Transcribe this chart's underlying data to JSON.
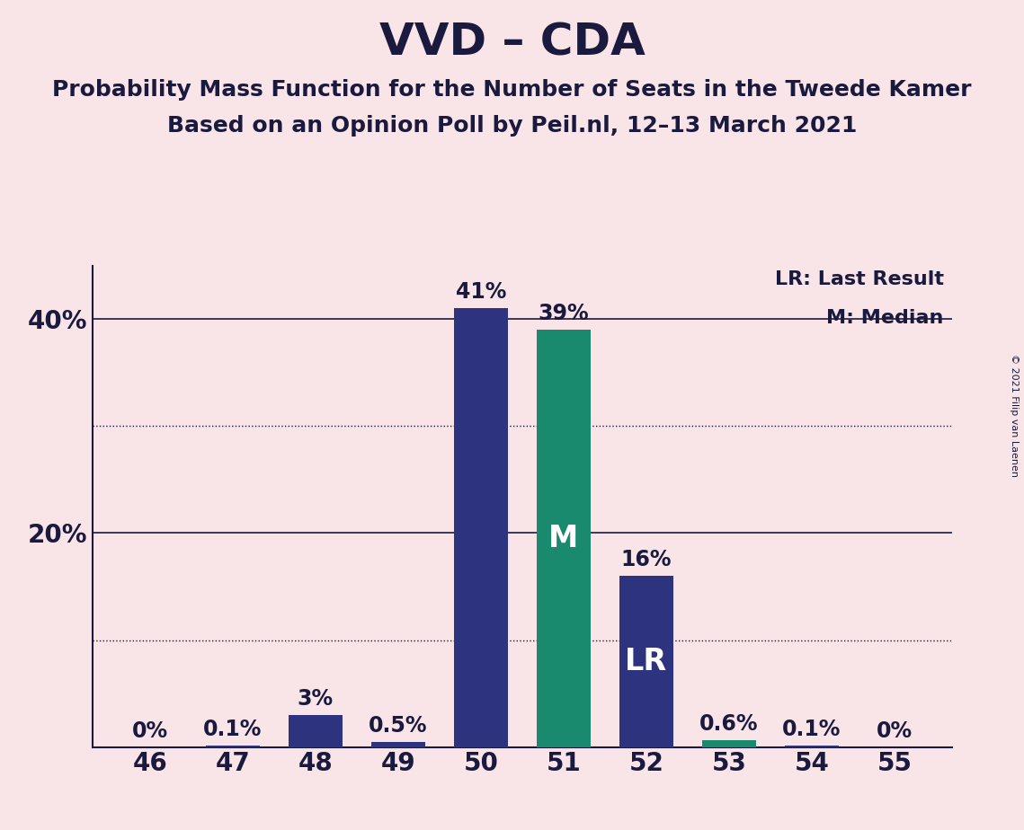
{
  "title": "VVD – CDA",
  "subtitle1": "Probability Mass Function for the Number of Seats in the Tweede Kamer",
  "subtitle2": "Based on an Opinion Poll by Peil.nl, 12–13 March 2021",
  "copyright": "© 2021 Filip van Laenen",
  "seats": [
    46,
    47,
    48,
    49,
    50,
    51,
    52,
    53,
    54,
    55
  ],
  "values": [
    0.0,
    0.1,
    3.0,
    0.5,
    41.0,
    39.0,
    16.0,
    0.6,
    0.1,
    0.0
  ],
  "labels": [
    "0%",
    "0.1%",
    "3%",
    "0.5%",
    "41%",
    "39%",
    "16%",
    "0.6%",
    "0.1%",
    "0%"
  ],
  "bar_colors": [
    "#2e3380",
    "#2e3380",
    "#2e3380",
    "#2e3380",
    "#2e3380",
    "#1a8a6e",
    "#2e3380",
    "#1a8a6e",
    "#2e3380",
    "#2e3380"
  ],
  "median_seat": 51,
  "lr_seat": 52,
  "median_label": "M",
  "lr_label": "LR",
  "legend_lr": "LR: Last Result",
  "legend_m": "M: Median",
  "ylim": [
    0,
    45
  ],
  "yticks": [
    20,
    40
  ],
  "ytick_labels": [
    "20%",
    "40%"
  ],
  "bg_color": "#f9e4e8",
  "bar_width": 0.65,
  "title_fontsize": 36,
  "subtitle_fontsize": 18,
  "axis_fontsize": 20,
  "label_fontsize": 17,
  "dark_navy": "#2e3380",
  "teal": "#1a8a6e",
  "text_color": "#1a1a3e"
}
